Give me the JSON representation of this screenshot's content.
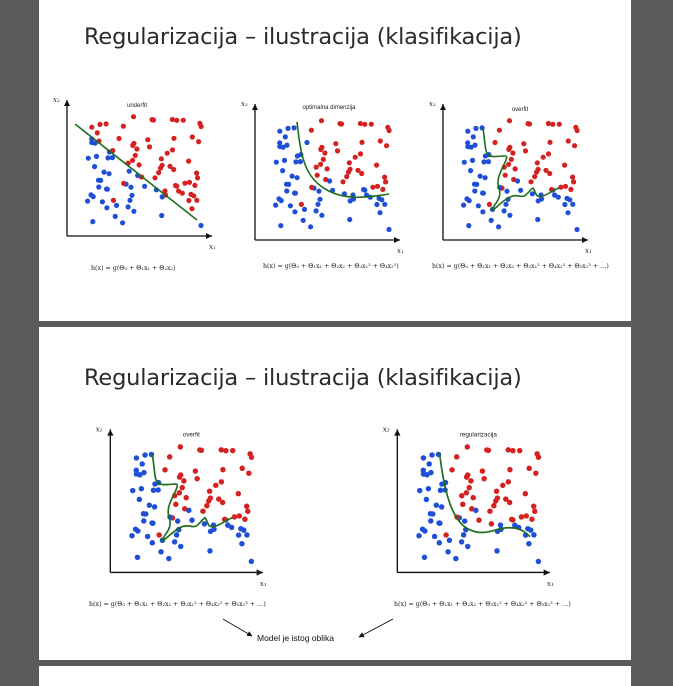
{
  "slides": [
    {
      "title": "Regularizacija – ilustracija (klasifikacija)",
      "panels": [
        {
          "label": "underfit",
          "x_axis": "x₁",
          "y_axis": "x₂",
          "formula": "h(x) = g(Θ₀ + Θ₁x₁ + Θ₂x₂)"
        },
        {
          "label": "optimalna dimenzija",
          "x_axis": "x₁",
          "y_axis": "x₂",
          "formula": "h(x) = g(Θ₀ + Θ₁x₁ + Θ₂x₂ + Θ₃x₁² + Θ₄x₂²)"
        },
        {
          "label": "overfit",
          "x_axis": "x₁",
          "y_axis": "x₂",
          "formula": "h(x) = g(Θ₀ + Θ₁x₁ + Θ₂x₂ + Θ₃x₁² + Θ₄x₂² + Θ₅x₁³ + …)"
        }
      ]
    },
    {
      "title": "Regularizacija – ilustracija (klasifikacija)",
      "panels": [
        {
          "label": "overfit",
          "x_axis": "x₁",
          "y_axis": "x₂",
          "formula": "h(x) = g(Θ₀ + Θ₁x₁ + Θ₂x₂ + Θ₃x₁² + Θ₄x₂² + Θ₅x₁³ + …)"
        },
        {
          "label": "regularizacija",
          "x_axis": "x₁",
          "y_axis": "x₂",
          "formula": "h(x) = g(Θ₀ + Θ₁x₁ + Θ₂x₂ + Θ₃x₁² + Θ₄x₂² + Θ₅x₁³ + …)"
        }
      ],
      "note": "Model je istog oblika"
    }
  ],
  "colors": {
    "class_a": "#1f4fd6",
    "class_b": "#d42222",
    "boundary": "#1e6e1e",
    "page_bg": "#5b5b5b"
  }
}
